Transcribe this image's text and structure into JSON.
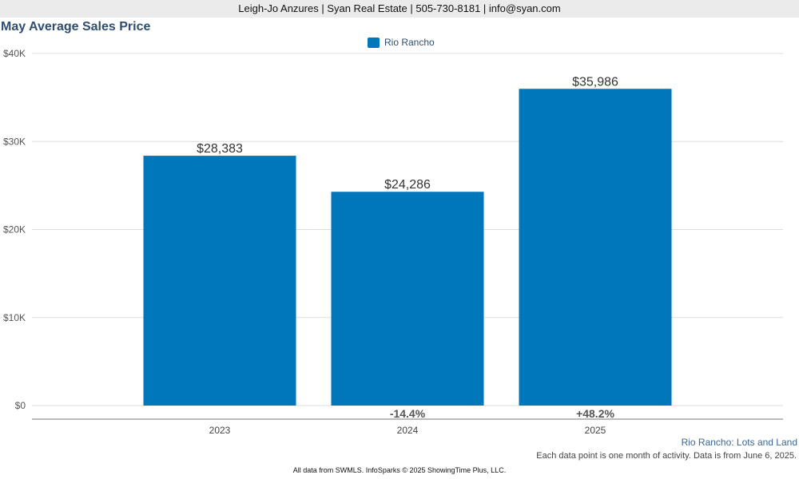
{
  "header": {
    "contact": "Leigh-Jo Anzures | Syan Real Estate | 505-730-8181 | info@syan.com"
  },
  "chart_data": {
    "type": "bar",
    "title": "May Average Sales Price",
    "categories": [
      "2023",
      "2024",
      "2025"
    ],
    "series": [
      {
        "name": "Rio Rancho",
        "color": "#0077bb",
        "values": [
          28383,
          24286,
          35986
        ],
        "value_labels": [
          "$28,383",
          "$24,286",
          "$35,986"
        ]
      }
    ],
    "change_labels": [
      "",
      "-14.4%",
      "+48.2%"
    ],
    "y_ticks": [
      0,
      10000,
      20000,
      30000,
      40000
    ],
    "y_tick_labels": [
      "$0",
      "$10K",
      "$20K",
      "$30K",
      "$40K"
    ],
    "ylim": [
      0,
      40000
    ],
    "grid": true,
    "legend_position": "top-center"
  },
  "subtitle": "Rio Rancho: Lots and Land",
  "data_note": "Each data point is one month of activity. Data is from June 6, 2025.",
  "footer": "All data from SWMLS. InfoSparks © 2025 ShowingTime Plus, LLC."
}
